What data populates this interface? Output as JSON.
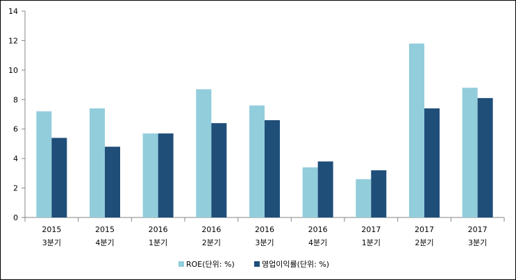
{
  "chart_data": {
    "type": "bar",
    "categories": [
      [
        "2015",
        "3분기"
      ],
      [
        "2015",
        "4분기"
      ],
      [
        "2016",
        "1분기"
      ],
      [
        "2016",
        "2분기"
      ],
      [
        "2016",
        "3분기"
      ],
      [
        "2016",
        "4분기"
      ],
      [
        "2017",
        "1분기"
      ],
      [
        "2017",
        "2분기"
      ],
      [
        "2017",
        "3분기"
      ]
    ],
    "series": [
      {
        "name": "ROE(단위: %)",
        "color": "#92cddc",
        "values": [
          7.2,
          7.4,
          5.7,
          8.7,
          7.6,
          3.4,
          2.6,
          11.8,
          8.8
        ]
      },
      {
        "name": "영업이익률(단위: %)",
        "color": "#1f4e79",
        "values": [
          5.4,
          4.8,
          5.7,
          6.4,
          6.6,
          3.8,
          3.2,
          7.4,
          8.1
        ]
      }
    ],
    "ylim": [
      0,
      14
    ],
    "yticks": [
      0,
      2,
      4,
      6,
      8,
      10,
      12,
      14
    ],
    "grid": false,
    "legend": "bottom",
    "title": "",
    "xlabel": "",
    "ylabel": ""
  }
}
